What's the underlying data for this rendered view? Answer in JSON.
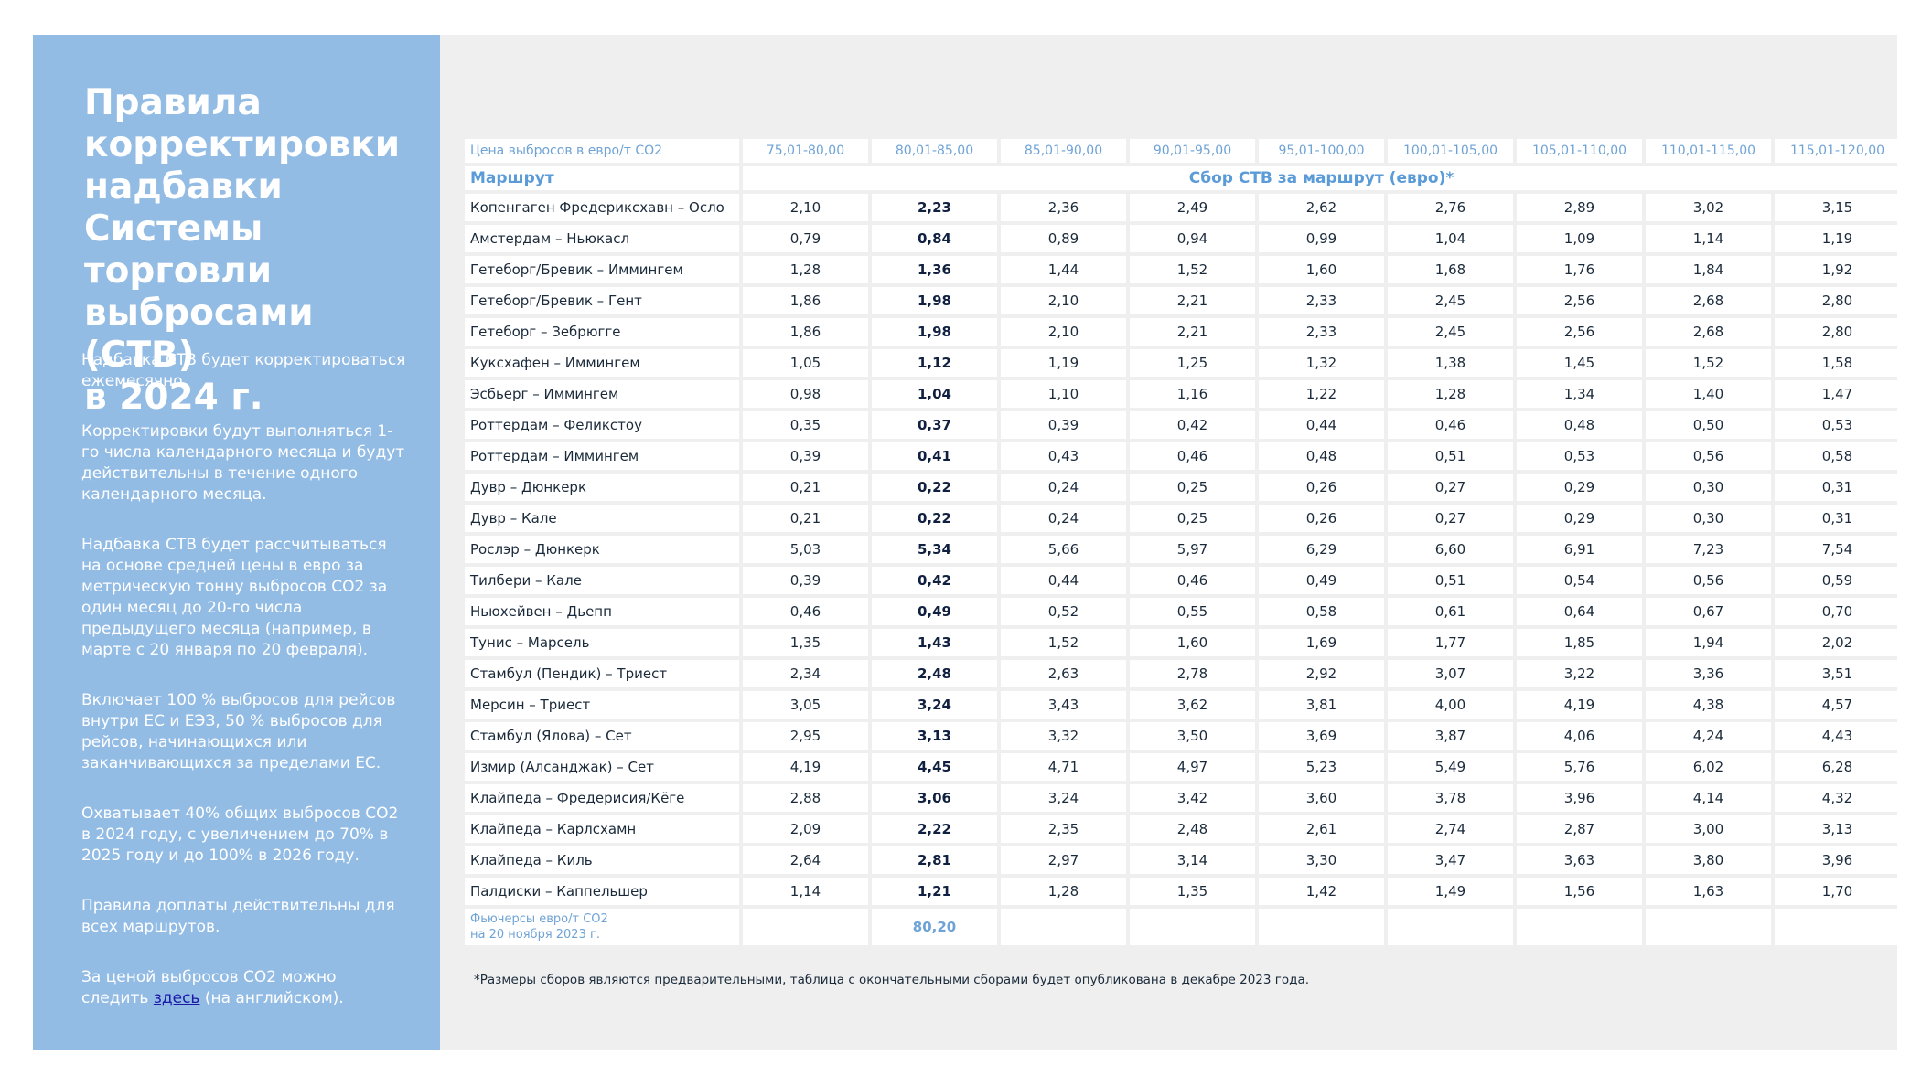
{
  "header": {
    "title_lines": [
      "Правила",
      "корректировки",
      "надбавки",
      "Системы торговли",
      "выбросами (СТВ)",
      "в 2024 г."
    ]
  },
  "paragraphs": [
    "Надбавка СТВ будет корректироваться ежемесячно.",
    "Корректировки будут выполняться 1-го числа календарного месяца и будут действительны в течение одного календарного месяца.",
    "Надбавка СТВ будет рассчитываться на основе средней цены в евро за метрическую тонну выбросов CO2 за один месяц до 20-го числа предыдущего месяца (например, в марте с 20 января по 20 февраля).",
    "Включает 100 % выбросов для рейсов внутри ЕС и ЕЭЗ, 50 % выбросов для рейсов, начинающихся или заканчивающихся за пределами ЕС.",
    "Охватывает 40% общих выбросов CO2 в 2024 году, с увеличением до 70% в 2025 году и до 100% в 2026 году.",
    "Правила доплаты действительны для всех маршрутов."
  ],
  "last_paragraph": {
    "before": "За ценой выбросов CO2 можно следить ",
    "link": "здесь",
    "after": " (на английском)."
  },
  "table": {
    "price_label": "Цена выбросов в евро/т  CO2",
    "price_ranges": [
      "75,01-80,00",
      "80,01-85,00",
      "85,01-90,00",
      "90,01-95,00",
      "95,01-100,00",
      "100,01-105,00",
      "105,01-110,00",
      "110,01-115,00",
      "115,01-120,00"
    ],
    "route_label": "Маршрут",
    "fee_label": "Сбор СТВ за маршрут (евро)*",
    "rows": [
      {
        "route": "Копенгаген Фредериксхавн – Осло",
        "values": [
          "2,10",
          "2,23",
          "2,36",
          "2,49",
          "2,62",
          "2,76",
          "2,89",
          "3,02",
          "3,15"
        ]
      },
      {
        "route": "Амстердам – Ньюкасл",
        "values": [
          "0,79",
          "0,84",
          "0,89",
          "0,94",
          "0,99",
          "1,04",
          "1,09",
          "1,14",
          "1,19"
        ]
      },
      {
        "route": "Гетеборг/Бревик – Иммингем",
        "values": [
          "1,28",
          "1,36",
          "1,44",
          "1,52",
          "1,60",
          "1,68",
          "1,76",
          "1,84",
          "1,92"
        ]
      },
      {
        "route": "Гетеборг/Бревик – Гент",
        "values": [
          "1,86",
          "1,98",
          "2,10",
          "2,21",
          "2,33",
          "2,45",
          "2,56",
          "2,68",
          "2,80"
        ]
      },
      {
        "route": "Гетеборг – Зебрюгге",
        "values": [
          "1,86",
          "1,98",
          "2,10",
          "2,21",
          "2,33",
          "2,45",
          "2,56",
          "2,68",
          "2,80"
        ]
      },
      {
        "route": "Куксхафен – Иммингем",
        "values": [
          "1,05",
          "1,12",
          "1,19",
          "1,25",
          "1,32",
          "1,38",
          "1,45",
          "1,52",
          "1,58"
        ]
      },
      {
        "route": "Эсбьерг – Иммингем",
        "values": [
          "0,98",
          "1,04",
          "1,10",
          "1,16",
          "1,22",
          "1,28",
          "1,34",
          "1,40",
          "1,47"
        ]
      },
      {
        "route": "Роттердам – Феликстоу",
        "values": [
          "0,35",
          "0,37",
          "0,39",
          "0,42",
          "0,44",
          "0,46",
          "0,48",
          "0,50",
          "0,53"
        ]
      },
      {
        "route": "Роттердам – Иммингем",
        "values": [
          "0,39",
          "0,41",
          "0,43",
          "0,46",
          "0,48",
          "0,51",
          "0,53",
          "0,56",
          "0,58"
        ]
      },
      {
        "route": "Дувр – Дюнкерк",
        "values": [
          "0,21",
          "0,22",
          "0,24",
          "0,25",
          "0,26",
          "0,27",
          "0,29",
          "0,30",
          "0,31"
        ]
      },
      {
        "route": "Дувр – Кале",
        "values": [
          "0,21",
          "0,22",
          "0,24",
          "0,25",
          "0,26",
          "0,27",
          "0,29",
          "0,30",
          "0,31"
        ]
      },
      {
        "route": "Рослэр – Дюнкерк",
        "values": [
          "5,03",
          "5,34",
          "5,66",
          "5,97",
          "6,29",
          "6,60",
          "6,91",
          "7,23",
          "7,54"
        ]
      },
      {
        "route": "Тилбери – Кале",
        "values": [
          "0,39",
          "0,42",
          "0,44",
          "0,46",
          "0,49",
          "0,51",
          "0,54",
          "0,56",
          "0,59"
        ]
      },
      {
        "route": "Ньюхейвен – Дьепп",
        "values": [
          "0,46",
          "0,49",
          "0,52",
          "0,55",
          "0,58",
          "0,61",
          "0,64",
          "0,67",
          "0,70"
        ]
      },
      {
        "route": "Тунис – Марсель",
        "values": [
          "1,35",
          "1,43",
          "1,52",
          "1,60",
          "1,69",
          "1,77",
          "1,85",
          "1,94",
          "2,02"
        ]
      },
      {
        "route": "Стамбул (Пендик) – Триест",
        "values": [
          "2,34",
          "2,48",
          "2,63",
          "2,78",
          "2,92",
          "3,07",
          "3,22",
          "3,36",
          "3,51"
        ]
      },
      {
        "route": "Мерсин – Триест",
        "values": [
          "3,05",
          "3,24",
          "3,43",
          "3,62",
          "3,81",
          "4,00",
          "4,19",
          "4,38",
          "4,57"
        ]
      },
      {
        "route": "Стамбул (Ялова) – Сет",
        "values": [
          "2,95",
          "3,13",
          "3,32",
          "3,50",
          "3,69",
          "3,87",
          "4,06",
          "4,24",
          "4,43"
        ]
      },
      {
        "route": "Измир (Алсанджак) – Сет",
        "values": [
          "4,19",
          "4,45",
          "4,71",
          "4,97",
          "5,23",
          "5,49",
          "5,76",
          "6,02",
          "6,28"
        ]
      },
      {
        "route": "Клайпеда – Фредерисия/Кёге",
        "values": [
          "2,88",
          "3,06",
          "3,24",
          "3,42",
          "3,60",
          "3,78",
          "3,96",
          "4,14",
          "4,32"
        ]
      },
      {
        "route": "Клайпеда – Карлсхамн",
        "values": [
          "2,09",
          "2,22",
          "2,35",
          "2,48",
          "2,61",
          "2,74",
          "2,87",
          "3,00",
          "3,13"
        ]
      },
      {
        "route": "Клайпеда – Киль",
        "values": [
          "2,64",
          "2,81",
          "2,97",
          "3,14",
          "3,30",
          "3,47",
          "3,63",
          "3,80",
          "3,96"
        ]
      },
      {
        "route": "Палдиски – Каппельшер",
        "values": [
          "1,14",
          "1,21",
          "1,28",
          "1,35",
          "1,42",
          "1,49",
          "1,56",
          "1,63",
          "1,70"
        ]
      }
    ],
    "futures_label": [
      "Фьючерсы евро/т CO2",
      "на 20 ноября  2023 г."
    ],
    "futures_value": "80,20"
  },
  "footnote": "*Размеры сборов являются предварительными, таблица с окончательными сборами будет опубликована в декабре 2023 года."
}
